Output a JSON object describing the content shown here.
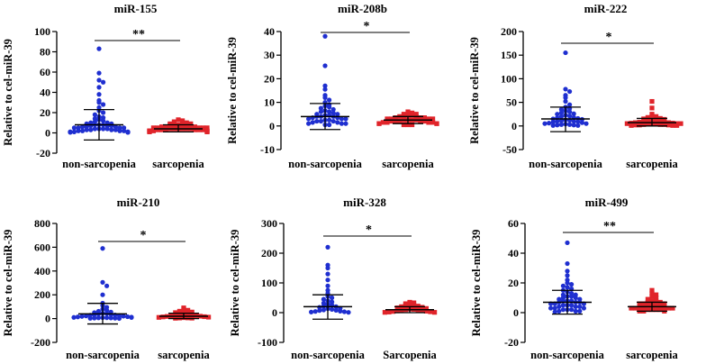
{
  "chart_data": [
    {
      "type": "scatter",
      "title": "miR-155",
      "ylabel": "Relative to cel-miR-39",
      "ylim": [
        -20,
        100
      ],
      "yticks": [
        -20,
        0,
        20,
        40,
        60,
        80,
        100
      ],
      "categories": [
        "non-sarcopenia",
        "sarcopenia"
      ],
      "significance": "**",
      "series": [
        {
          "color": "#1f2fd0",
          "marker": "circle",
          "mean": 8,
          "sd_low": -7,
          "sd_high": 23,
          "values": [
            83,
            59,
            52,
            50,
            45,
            38,
            32,
            30,
            28,
            25,
            22,
            20,
            18,
            16,
            15,
            14,
            13,
            12,
            11,
            10,
            10,
            9,
            9,
            8,
            8,
            8,
            7,
            7,
            7,
            6,
            6,
            6,
            5,
            5,
            5,
            5,
            4,
            4,
            4,
            4,
            3,
            3,
            3,
            3,
            2,
            2,
            2,
            2,
            1,
            1,
            1,
            1,
            1,
            0.5,
            0.5,
            0.5
          ]
        },
        {
          "color": "#e0242a",
          "marker": "square",
          "mean": 4,
          "sd_low": 1,
          "sd_high": 8,
          "values": [
            13,
            12,
            11,
            10,
            9,
            9,
            8,
            8,
            7,
            7,
            7,
            6,
            6,
            6,
            6,
            5,
            5,
            5,
            5,
            5,
            4,
            4,
            4,
            4,
            4,
            4,
            3,
            3,
            3,
            3,
            3,
            3,
            2,
            2,
            2,
            2,
            2,
            1,
            1,
            1
          ]
        }
      ]
    },
    {
      "type": "scatter",
      "title": "miR-208b",
      "ylabel": "Relative to cel-miR-39",
      "ylim": [
        -10,
        40
      ],
      "yticks": [
        -10,
        0,
        10,
        20,
        30,
        40
      ],
      "categories": [
        "non-sarcopenia",
        "sarcopenia"
      ],
      "significance": "*",
      "series": [
        {
          "color": "#1f2fd0",
          "marker": "circle",
          "mean": 4,
          "sd_low": -1.5,
          "sd_high": 9.5,
          "values": [
            38,
            25.5,
            17,
            15.5,
            13,
            12,
            11,
            10,
            9,
            8.5,
            8,
            7.5,
            7,
            6.5,
            6,
            6,
            5.5,
            5,
            5,
            4.5,
            4.5,
            4,
            4,
            4,
            3.5,
            3.5,
            3,
            3,
            3,
            2.5,
            2.5,
            2,
            2,
            2,
            1.5,
            1.5,
            1,
            1,
            1,
            0.5,
            0.5
          ]
        },
        {
          "color": "#e0242a",
          "marker": "square",
          "mean": 2.5,
          "sd_low": 1,
          "sd_high": 4,
          "values": [
            6,
            5.5,
            5,
            5,
            4.5,
            4.5,
            4,
            4,
            4,
            3.5,
            3.5,
            3.5,
            3,
            3,
            3,
            3,
            2.5,
            2.5,
            2.5,
            2.5,
            2,
            2,
            2,
            2,
            2,
            1.5,
            1.5,
            1.5,
            1.5,
            1,
            1,
            1,
            1,
            0.5,
            0.5,
            0.5
          ]
        }
      ]
    },
    {
      "type": "scatter",
      "title": "miR-222",
      "ylabel": "Relative to cel-miR-39",
      "ylim": [
        -50,
        200
      ],
      "yticks": [
        -50,
        0,
        50,
        100,
        150,
        200
      ],
      "categories": [
        "non-sarcopenia",
        "sarcopenia"
      ],
      "significance": "*",
      "series": [
        {
          "color": "#1f2fd0",
          "marker": "circle",
          "mean": 15,
          "sd_low": -12,
          "sd_high": 40,
          "values": [
            155,
            78,
            73,
            65,
            60,
            52,
            45,
            40,
            37,
            35,
            32,
            30,
            28,
            26,
            25,
            23,
            21,
            20,
            18,
            17,
            16,
            15,
            14,
            13,
            12,
            11,
            10,
            10,
            9,
            8,
            7,
            6,
            5,
            5,
            4,
            3,
            3,
            2,
            2,
            1,
            1
          ]
        },
        {
          "color": "#e0242a",
          "marker": "square",
          "mean": 7,
          "sd_low": 0,
          "sd_high": 16,
          "values": [
            52,
            38,
            25,
            22,
            20,
            18,
            16,
            15,
            14,
            12,
            11,
            10,
            10,
            9,
            8,
            8,
            7,
            7,
            6,
            6,
            5,
            5,
            5,
            4,
            4,
            4,
            3,
            3,
            3,
            2,
            2,
            2,
            1,
            1,
            1
          ]
        }
      ]
    },
    {
      "type": "scatter",
      "title": "miR-210",
      "ylabel": "Relative to cel-miR-39",
      "ylim": [
        -200,
        800
      ],
      "yticks": [
        -200,
        0,
        200,
        400,
        600,
        800
      ],
      "categories": [
        "non-sarcopenia",
        "sarcopenia"
      ],
      "significance": "*",
      "series": [
        {
          "color": "#1f2fd0",
          "marker": "circle",
          "mean": 40,
          "sd_low": -45,
          "sd_high": 128,
          "values": [
            590,
            305,
            275,
            200,
            130,
            110,
            95,
            80,
            70,
            62,
            55,
            50,
            45,
            42,
            38,
            35,
            32,
            30,
            28,
            25,
            22,
            20,
            18,
            16,
            14,
            12,
            10,
            9,
            8,
            7,
            6,
            5,
            4,
            3,
            2,
            1
          ]
        },
        {
          "color": "#e0242a",
          "marker": "square",
          "mean": 20,
          "sd_low": 0,
          "sd_high": 45,
          "values": [
            90,
            80,
            70,
            62,
            55,
            50,
            45,
            40,
            35,
            32,
            28,
            25,
            22,
            20,
            18,
            16,
            14,
            12,
            10,
            8,
            6,
            5,
            4,
            3
          ]
        }
      ]
    },
    {
      "type": "scatter",
      "title": "miR-328",
      "ylabel": "Relative to cel-miR-39",
      "ylim": [
        -100,
        300
      ],
      "yticks": [
        -100,
        0,
        100,
        200,
        300
      ],
      "categories": [
        "non-sarcopenia",
        "Sarcopenia"
      ],
      "significance": "*",
      "series": [
        {
          "color": "#1f2fd0",
          "marker": "circle",
          "mean": 20,
          "sd_low": -22,
          "sd_high": 60,
          "values": [
            220,
            160,
            150,
            130,
            110,
            90,
            75,
            65,
            55,
            50,
            45,
            40,
            36,
            32,
            28,
            25,
            22,
            20,
            18,
            15,
            13,
            11,
            9,
            8,
            7,
            5,
            4,
            3,
            2,
            1
          ]
        },
        {
          "color": "#e0242a",
          "marker": "square",
          "mean": 10,
          "sd_low": 0,
          "sd_high": 20,
          "values": [
            35,
            33,
            30,
            28,
            26,
            24,
            22,
            20,
            18,
            16,
            14,
            12,
            11,
            10,
            9,
            8,
            7,
            6,
            5,
            4,
            3,
            2,
            1,
            1
          ]
        }
      ]
    },
    {
      "type": "scatter",
      "title": "miR-499",
      "ylabel": "Relative to cel-miR-39",
      "ylim": [
        -20,
        60
      ],
      "yticks": [
        -20,
        0,
        20,
        40,
        60
      ],
      "categories": [
        "non-sarcopenia",
        "sarcopenia"
      ],
      "significance": "**",
      "series": [
        {
          "color": "#1f2fd0",
          "marker": "circle",
          "mean": 7,
          "sd_low": -1,
          "sd_high": 15,
          "values": [
            47,
            33,
            28,
            25,
            22,
            20,
            19,
            18,
            17,
            16,
            15,
            14,
            13,
            12,
            12,
            11,
            11,
            10,
            10,
            9,
            9,
            8,
            8,
            8,
            7,
            7,
            7,
            6,
            6,
            6,
            5,
            5,
            5,
            4,
            4,
            4,
            3,
            3,
            3,
            2,
            2,
            2,
            1,
            1,
            1,
            0.5
          ]
        },
        {
          "color": "#e0242a",
          "marker": "square",
          "mean": 4,
          "sd_low": 1,
          "sd_high": 7,
          "values": [
            15,
            13,
            12,
            11,
            10,
            9,
            8,
            8,
            7,
            7,
            6,
            6,
            6,
            5,
            5,
            5,
            4,
            4,
            4,
            4,
            3,
            3,
            3,
            3,
            2,
            2,
            2,
            2,
            1,
            1,
            1
          ]
        }
      ]
    }
  ]
}
